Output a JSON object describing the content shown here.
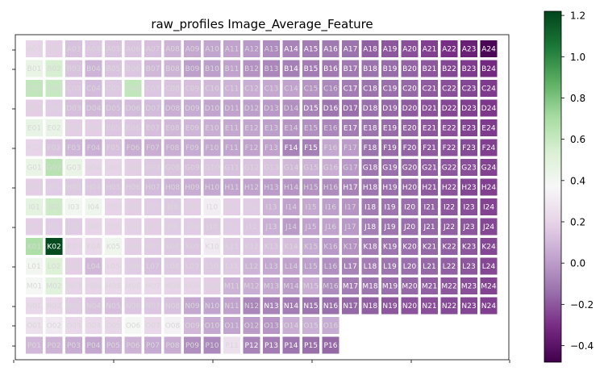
{
  "chart_data": {
    "type": "heatmap",
    "title": "raw_profiles Image_Average_Feature",
    "colormap": "PRGn",
    "rows": [
      "A",
      "B",
      "C",
      "D",
      "E",
      "F",
      "G",
      "H",
      "I",
      "J",
      "K",
      "L",
      "M",
      "N",
      "O",
      "P"
    ],
    "columns": [
      "01",
      "02",
      "03",
      "04",
      "05",
      "06",
      "07",
      "08",
      "09",
      "10",
      "11",
      "12",
      "13",
      "14",
      "15",
      "16",
      "17",
      "18",
      "19",
      "20",
      "21",
      "22",
      "23",
      "24"
    ],
    "values": [
      [
        0.2,
        0.18,
        0.13,
        0.15,
        0.14,
        0.14,
        0.12,
        0.08,
        0.04,
        0.03,
        0.02,
        -0.01,
        -0.05,
        -0.08,
        -0.1,
        -0.11,
        -0.13,
        -0.18,
        -0.2,
        -0.22,
        -0.26,
        -0.3,
        -0.35,
        -0.45
      ],
      [
        0.45,
        0.55,
        0.14,
        0.08,
        0.14,
        0.15,
        0.1,
        0.08,
        0.01,
        0.01,
        0.02,
        -0.03,
        -0.07,
        -0.09,
        -0.1,
        -0.11,
        -0.11,
        -0.13,
        -0.15,
        -0.17,
        -0.2,
        -0.24,
        -0.27,
        -0.32
      ],
      [
        0.62,
        0.6,
        0.15,
        0.11,
        0.16,
        0.62,
        0.15,
        0.14,
        0.12,
        0.1,
        0.08,
        0.06,
        0.04,
        0.02,
        -0.02,
        -0.06,
        -0.1,
        -0.13,
        -0.14,
        -0.16,
        -0.19,
        -0.22,
        -0.24,
        -0.27
      ],
      [
        0.18,
        0.17,
        0.12,
        0.1,
        0.11,
        0.11,
        0.11,
        0.06,
        0.05,
        0.03,
        0.02,
        0.01,
        -0.01,
        -0.04,
        -0.08,
        -0.12,
        -0.14,
        -0.14,
        -0.16,
        -0.19,
        -0.21,
        -0.24,
        -0.26,
        -0.28
      ],
      [
        0.46,
        0.45,
        0.18,
        0.18,
        0.15,
        0.15,
        0.12,
        0.1,
        0.09,
        0.06,
        0.04,
        0.03,
        0.01,
        -0.02,
        -0.04,
        -0.07,
        -0.1,
        -0.13,
        -0.15,
        -0.17,
        -0.2,
        -0.22,
        -0.25,
        -0.27
      ],
      [
        0.2,
        0.14,
        0.09,
        0.07,
        0.13,
        0.06,
        0.06,
        0.06,
        0.05,
        0.04,
        0.03,
        0.02,
        0.02,
        -0.08,
        -0.09,
        0.04,
        0.0,
        -0.13,
        -0.15,
        -0.17,
        -0.19,
        -0.21,
        -0.23,
        -0.26
      ],
      [
        0.45,
        0.65,
        0.45,
        0.2,
        0.2,
        0.18,
        0.16,
        0.14,
        0.12,
        0.15,
        0.13,
        0.14,
        0.14,
        0.1,
        0.08,
        0.06,
        -0.01,
        -0.12,
        -0.14,
        -0.16,
        -0.18,
        -0.2,
        -0.22,
        -0.25
      ],
      [
        0.18,
        0.17,
        0.16,
        0.15,
        0.14,
        0.14,
        0.11,
        0.08,
        0.06,
        0.04,
        0.03,
        0.02,
        0.0,
        -0.02,
        -0.03,
        -0.05,
        -0.08,
        -0.12,
        -0.14,
        -0.16,
        -0.19,
        -0.21,
        -0.24,
        -0.26
      ],
      [
        0.48,
        0.58,
        0.4,
        0.42,
        0.2,
        0.18,
        0.17,
        0.16,
        0.18,
        0.32,
        0.18,
        0.17,
        0.08,
        0.02,
        0.04,
        0.01,
        -0.02,
        -0.1,
        -0.12,
        -0.14,
        -0.17,
        -0.2,
        -0.22,
        -0.25
      ],
      [
        0.18,
        0.17,
        0.17,
        0.2,
        0.2,
        0.19,
        0.18,
        0.17,
        0.17,
        0.16,
        0.17,
        0.15,
        0.07,
        0.0,
        0.02,
        0.02,
        -0.01,
        -0.09,
        -0.12,
        -0.14,
        -0.16,
        -0.18,
        -0.2,
        -0.24
      ],
      [
        0.68,
        1.2,
        0.2,
        0.22,
        0.42,
        0.18,
        0.17,
        0.16,
        0.15,
        0.3,
        0.16,
        0.15,
        0.13,
        0.12,
        0.05,
        -0.01,
        -0.03,
        -0.1,
        -0.12,
        -0.14,
        -0.16,
        -0.18,
        -0.2,
        -0.24
      ],
      [
        0.4,
        0.52,
        0.18,
        0.1,
        0.21,
        0.17,
        0.13,
        0.16,
        0.15,
        0.16,
        0.16,
        0.08,
        0.04,
        0.02,
        0.01,
        -0.04,
        -0.08,
        -0.1,
        -0.12,
        -0.14,
        -0.16,
        -0.18,
        -0.2,
        -0.24
      ],
      [
        0.38,
        0.5,
        0.2,
        0.2,
        0.22,
        0.22,
        0.22,
        0.2,
        0.2,
        0.18,
        0.08,
        0.06,
        0.04,
        0.0,
        0.06,
        -0.05,
        -0.1,
        -0.12,
        -0.14,
        -0.16,
        -0.18,
        -0.2,
        -0.22,
        -0.25
      ],
      [
        0.22,
        0.21,
        0.17,
        0.14,
        0.12,
        0.15,
        0.15,
        0.13,
        0.04,
        0.03,
        0.02,
        -0.07,
        -0.08,
        -0.1,
        -0.12,
        -0.14,
        -0.16,
        -0.18,
        -0.2,
        -0.21,
        -0.22,
        -0.23,
        -0.24,
        -0.26
      ],
      [
        0.26,
        0.3,
        0.22,
        0.22,
        0.21,
        0.38,
        0.22,
        0.34,
        0.1,
        0.04,
        0.03,
        0.0,
        -0.02,
        0.06,
        0.07,
        0.05,
        null,
        null,
        null,
        null,
        null,
        null,
        null,
        null
      ],
      [
        0.1,
        0.08,
        0.06,
        0.04,
        0.07,
        0.08,
        0.05,
        0.06,
        -0.04,
        -0.06,
        0.26,
        -0.08,
        -0.1,
        -0.12,
        -0.14,
        -0.16,
        null,
        null,
        null,
        null,
        null,
        null,
        null,
        null
      ]
    ],
    "colorbar": {
      "min": -0.48,
      "max": 1.22,
      "ticks": [
        1.2,
        1.0,
        0.8,
        0.6,
        0.4,
        0.2,
        0.0,
        -0.2,
        -0.4
      ],
      "tick_labels": [
        "1.2",
        "1.0",
        "0.8",
        "0.6",
        "0.4",
        "0.2",
        "0.0",
        "−0.2",
        "−0.4"
      ]
    }
  }
}
